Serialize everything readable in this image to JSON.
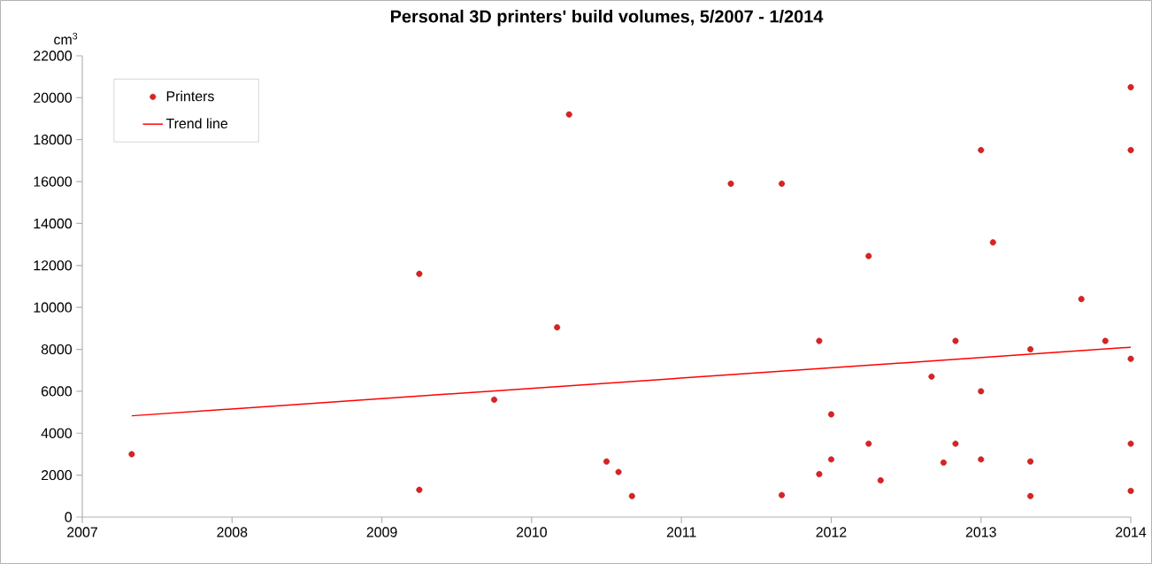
{
  "chart_data": {
    "type": "scatter",
    "title": "Personal 3D printers' build volumes, 5/2007 - 1/2014",
    "ylabel": "cm$^{3}$",
    "xlim": [
      2007,
      2014
    ],
    "xticks": [
      2007,
      2008,
      2009,
      2010,
      2011,
      2012,
      2013,
      2014
    ],
    "ylim": [
      0,
      22000
    ],
    "yticks": [
      0,
      2000,
      4000,
      6000,
      8000,
      10000,
      12000,
      14000,
      16000,
      18000,
      20000,
      22000
    ],
    "grid": false,
    "legend": "top left",
    "series": [
      {
        "name": "Printers",
        "marker": "circle",
        "color": "#e02020",
        "x": [
          2007.33,
          2009.25,
          2009.25,
          2009.75,
          2010.17,
          2010.25,
          2010.5,
          2010.58,
          2010.67,
          2011.33,
          2011.67,
          2011.67,
          2011.92,
          2011.92,
          2012.0,
          2012.0,
          2012.25,
          2012.25,
          2012.33,
          2012.67,
          2012.75,
          2012.83,
          2012.83,
          2013.0,
          2013.0,
          2013.0,
          2013.08,
          2013.33,
          2013.33,
          2013.33,
          2013.67,
          2013.83,
          2014.0,
          2014.0,
          2014.0,
          2014.0,
          2014.0
        ],
        "values": [
          3000,
          11600,
          1300,
          5600,
          9050,
          19200,
          2650,
          2150,
          1000,
          15900,
          15900,
          1050,
          8400,
          2050,
          4900,
          2750,
          12450,
          3500,
          1750,
          6700,
          2600,
          8400,
          3500,
          17500,
          6000,
          2750,
          13100,
          8000,
          2650,
          1000,
          10400,
          8400,
          20500,
          17500,
          7550,
          3500,
          1250
        ]
      },
      {
        "name": "Trend line",
        "type": "line",
        "marker": "none",
        "line_style": "solid",
        "color": "#ff0000",
        "x": [
          2007.33,
          2014.0
        ],
        "values": [
          4830,
          8100
        ]
      }
    ]
  }
}
